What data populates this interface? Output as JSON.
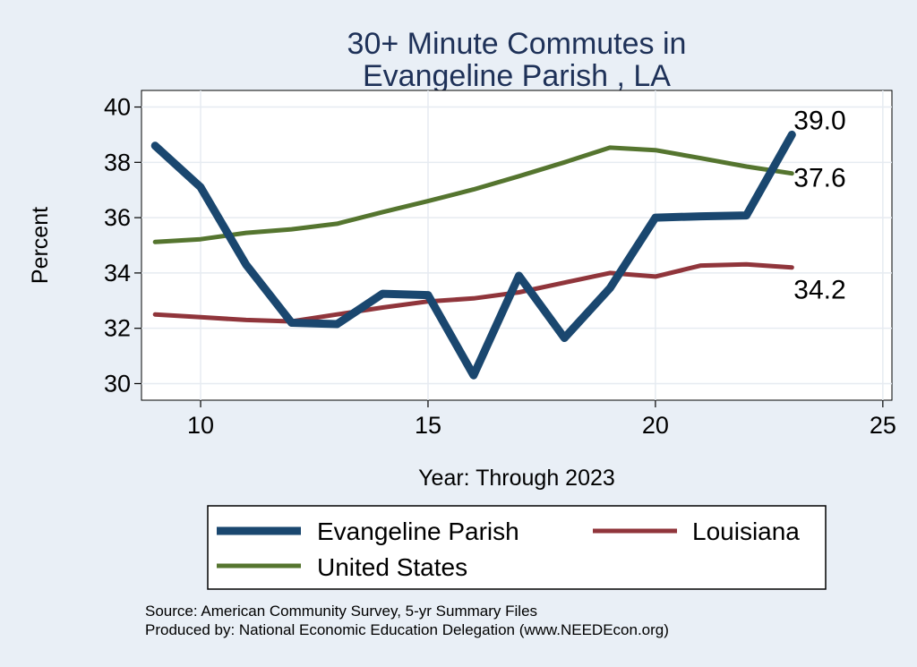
{
  "chart_data": {
    "type": "line",
    "title": [
      "30+ Minute Commutes in",
      "Evangeline Parish , LA"
    ],
    "xlabel": "Year: Through 2023",
    "ylabel": "Percent",
    "xlim": [
      8.7,
      25.2
    ],
    "ylim": [
      29.4,
      40.6
    ],
    "x_ticks": [
      10,
      15,
      20,
      25
    ],
    "y_ticks": [
      30,
      32,
      34,
      36,
      38,
      40
    ],
    "grid": true,
    "x": [
      9,
      10,
      11,
      12,
      13,
      14,
      15,
      16,
      17,
      18,
      19,
      20,
      21,
      22,
      23
    ],
    "series": [
      {
        "name": "Evangeline Parish",
        "color": "#1a476f",
        "values": [
          38.6,
          37.1,
          34.3,
          32.2,
          32.15,
          33.25,
          33.2,
          30.3,
          33.9,
          31.65,
          33.45,
          36.0,
          36.05,
          36.08,
          39.0
        ],
        "end_label": "39.0"
      },
      {
        "name": "Louisiana",
        "color": "#90353b",
        "values": [
          32.5,
          32.4,
          32.3,
          32.25,
          32.5,
          32.75,
          32.97,
          33.08,
          33.3,
          33.65,
          34.0,
          33.87,
          34.27,
          34.31,
          34.2
        ],
        "end_label": "34.2"
      },
      {
        "name": "United States",
        "color": "#55752f",
        "values": [
          35.12,
          35.22,
          35.45,
          35.58,
          35.78,
          36.2,
          36.6,
          37.02,
          37.5,
          38.0,
          38.53,
          38.44,
          38.15,
          37.85,
          37.6
        ],
        "end_label": "37.6"
      }
    ],
    "legend": {
      "position": "bottom",
      "entries": [
        "Evangeline Parish",
        "Louisiana",
        "United States"
      ]
    },
    "source_lines": [
      "Source: American Community Survey, 5-yr Summary Files",
      "Produced by: National Economic Education Delegation (www.NEEDEcon.org)"
    ]
  }
}
